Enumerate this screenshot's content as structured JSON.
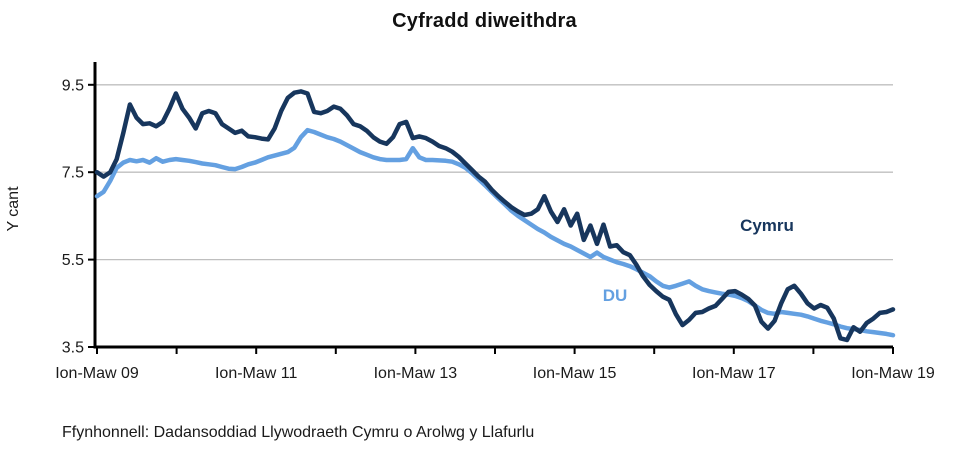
{
  "title": "Cyfradd diweithdra",
  "source_note": "Ffynhonnell: Dadansoddiad Llywodraeth Cymru o Arolwg y Llafurlu",
  "colors": {
    "cymru_line": "#17365d",
    "du_line": "#64a0e1",
    "gridline": "#bfbfbf",
    "axis": "#000000",
    "text": "#1a1a1a"
  },
  "chart_data": {
    "type": "line",
    "title": "Cyfradd diweithdra",
    "xlabel": "",
    "ylabel": "Y cant",
    "ylim": [
      3.5,
      9.5
    ],
    "y_ticks": [
      9.5,
      7.5,
      5.5,
      3.5
    ],
    "x_tick_labels": [
      "Ion-Maw 09",
      "Ion-Maw 11",
      "Ion-Maw 13",
      "Ion-Maw 15",
      "Ion-Maw 17",
      "Ion-Maw 19"
    ],
    "x_minor_ticks": "yearly between labels",
    "x_unit": "rolling 3-month periods (monthly), Ion-Maw 09 to Ion-Maw 19",
    "grid": "horizontal gridlines at 9.5, 7.5, 5.5",
    "legend": "inline labels on chart",
    "series": [
      {
        "name": "Cymru",
        "color": "#17365d",
        "values": [
          7.5,
          7.4,
          7.5,
          7.8,
          8.4,
          9.05,
          8.75,
          8.6,
          8.62,
          8.55,
          8.65,
          8.95,
          9.3,
          8.95,
          8.75,
          8.5,
          8.85,
          8.9,
          8.85,
          8.6,
          8.5,
          8.4,
          8.45,
          8.32,
          8.3,
          8.27,
          8.25,
          8.5,
          8.9,
          9.2,
          9.32,
          9.35,
          9.3,
          8.88,
          8.85,
          8.9,
          9.0,
          8.95,
          8.8,
          8.6,
          8.55,
          8.45,
          8.3,
          8.2,
          8.15,
          8.3,
          8.6,
          8.65,
          8.28,
          8.32,
          8.28,
          8.2,
          8.1,
          8.05,
          7.97,
          7.85,
          7.7,
          7.55,
          7.4,
          7.28,
          7.1,
          6.95,
          6.82,
          6.7,
          6.6,
          6.52,
          6.55,
          6.65,
          6.95,
          6.6,
          6.36,
          6.65,
          6.28,
          6.55,
          5.95,
          6.28,
          5.86,
          6.3,
          5.8,
          5.83,
          5.67,
          5.6,
          5.38,
          5.12,
          4.92,
          4.78,
          4.65,
          4.58,
          4.25,
          4.0,
          4.12,
          4.28,
          4.3,
          4.38,
          4.44,
          4.6,
          4.76,
          4.78,
          4.7,
          4.6,
          4.45,
          4.08,
          3.92,
          4.1,
          4.5,
          4.82,
          4.9,
          4.72,
          4.5,
          4.38,
          4.46,
          4.4,
          4.15,
          3.7,
          3.66,
          3.95,
          3.85,
          4.05,
          4.15,
          4.28,
          4.3,
          4.36
        ]
      },
      {
        "name": "DU",
        "color": "#64a0e1",
        "values": [
          6.95,
          7.05,
          7.3,
          7.6,
          7.72,
          7.78,
          7.75,
          7.78,
          7.72,
          7.82,
          7.74,
          7.78,
          7.8,
          7.78,
          7.76,
          7.73,
          7.7,
          7.68,
          7.66,
          7.62,
          7.58,
          7.57,
          7.62,
          7.68,
          7.72,
          7.78,
          7.84,
          7.88,
          7.92,
          7.96,
          8.06,
          8.3,
          8.46,
          8.42,
          8.36,
          8.3,
          8.26,
          8.2,
          8.12,
          8.04,
          7.96,
          7.9,
          7.84,
          7.8,
          7.78,
          7.78,
          7.78,
          7.8,
          8.05,
          7.84,
          7.78,
          7.78,
          7.77,
          7.76,
          7.74,
          7.68,
          7.6,
          7.48,
          7.34,
          7.2,
          7.05,
          6.9,
          6.76,
          6.62,
          6.5,
          6.4,
          6.3,
          6.2,
          6.12,
          6.02,
          5.94,
          5.86,
          5.8,
          5.72,
          5.64,
          5.56,
          5.66,
          5.56,
          5.5,
          5.44,
          5.4,
          5.35,
          5.28,
          5.2,
          5.12,
          5.0,
          4.9,
          4.86,
          4.9,
          4.95,
          5.0,
          4.9,
          4.82,
          4.78,
          4.75,
          4.72,
          4.7,
          4.67,
          4.62,
          4.55,
          4.45,
          4.35,
          4.28,
          4.26,
          4.3,
          4.28,
          4.26,
          4.24,
          4.2,
          4.15,
          4.1,
          4.06,
          4.02,
          3.97,
          3.93,
          3.91,
          3.89,
          3.86,
          3.84,
          3.82,
          3.8,
          3.77
        ]
      }
    ]
  }
}
